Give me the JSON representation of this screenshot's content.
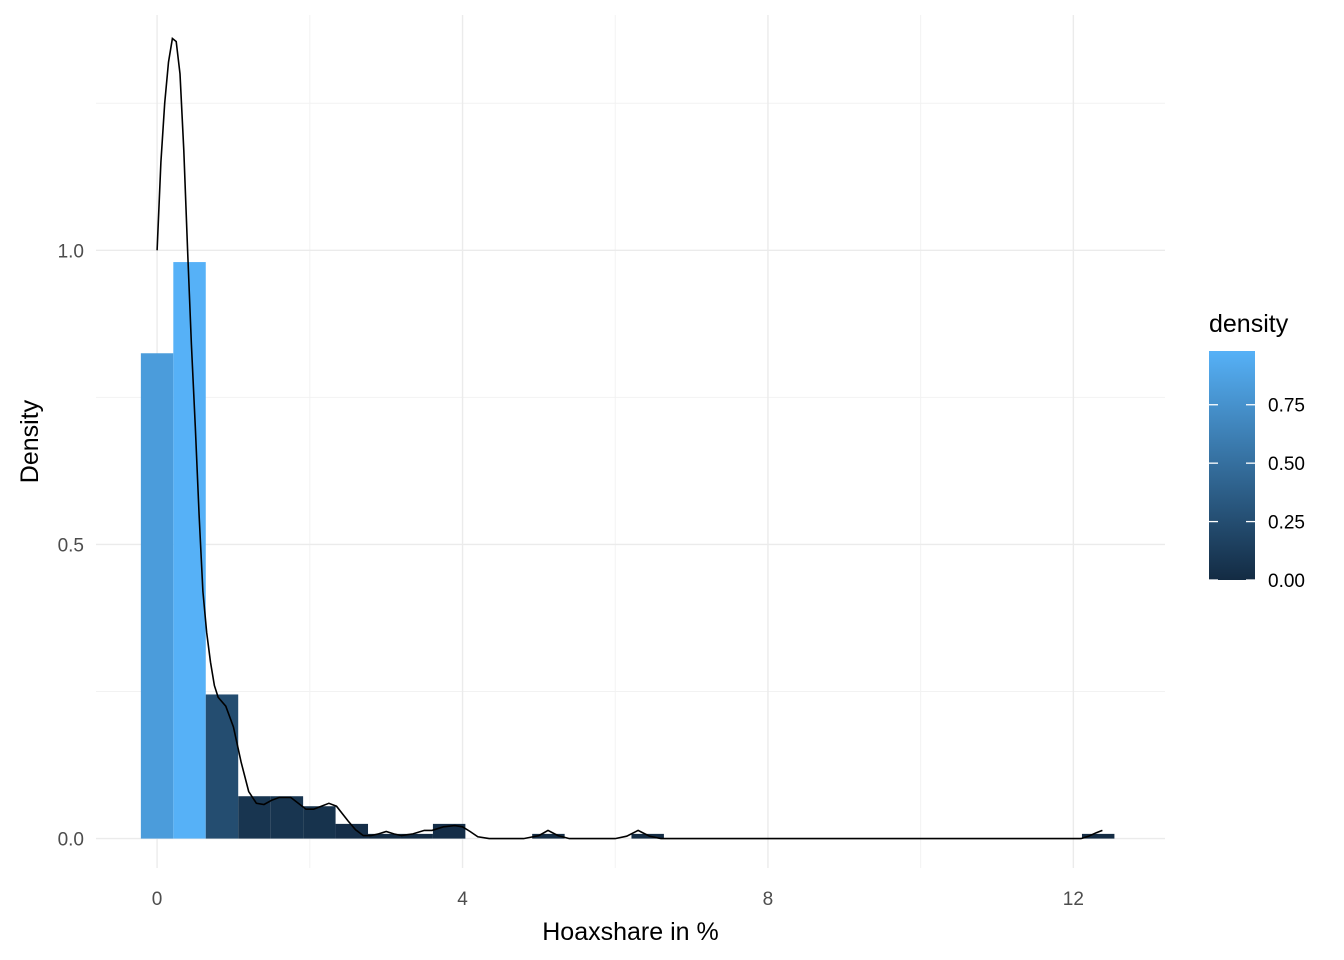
{
  "chart_data": {
    "type": "bar",
    "xlabel": "Hoaxshare in %",
    "ylabel": "Density",
    "xlim": [
      -0.8,
      13.2
    ],
    "ylim": [
      -0.05,
      1.4
    ],
    "x_ticks": [
      {
        "value": 0,
        "label": "0"
      },
      {
        "value": 4,
        "label": "4"
      },
      {
        "value": 8,
        "label": "8"
      },
      {
        "value": 12,
        "label": "12"
      }
    ],
    "y_ticks": [
      {
        "value": 0.0,
        "label": "0.0"
      },
      {
        "value": 0.5,
        "label": "0.5"
      },
      {
        "value": 1.0,
        "label": "1.0"
      }
    ],
    "x_minor": [
      2,
      6,
      10
    ],
    "y_minor": [
      0.25,
      0.75,
      1.25
    ],
    "grid": true,
    "bin_width": 0.425,
    "bins": [
      {
        "start": -0.2125,
        "end": 0.2125,
        "density": 0.825
      },
      {
        "start": 0.2125,
        "end": 0.6375,
        "density": 0.98
      },
      {
        "start": 0.6375,
        "end": 1.0625,
        "density": 0.245
      },
      {
        "start": 1.0625,
        "end": 1.4875,
        "density": 0.072
      },
      {
        "start": 1.4875,
        "end": 1.9125,
        "density": 0.072
      },
      {
        "start": 1.9125,
        "end": 2.3375,
        "density": 0.055
      },
      {
        "start": 2.3375,
        "end": 2.7625,
        "density": 0.025
      },
      {
        "start": 2.7625,
        "end": 3.1875,
        "density": 0.008
      },
      {
        "start": 3.1875,
        "end": 3.6125,
        "density": 0.008
      },
      {
        "start": 3.6125,
        "end": 4.0375,
        "density": 0.025
      },
      {
        "start": 4.9125,
        "end": 5.3375,
        "density": 0.008
      },
      {
        "start": 6.2125,
        "end": 6.6375,
        "density": 0.008
      },
      {
        "start": 12.1125,
        "end": 12.5375,
        "density": 0.008
      }
    ],
    "density_curve": [
      [
        0.0,
        1.0
      ],
      [
        0.05,
        1.15
      ],
      [
        0.1,
        1.25
      ],
      [
        0.15,
        1.32
      ],
      [
        0.2,
        1.36
      ],
      [
        0.25,
        1.355
      ],
      [
        0.3,
        1.3
      ],
      [
        0.35,
        1.17
      ],
      [
        0.4,
        1.0
      ],
      [
        0.45,
        0.84
      ],
      [
        0.5,
        0.7
      ],
      [
        0.55,
        0.55
      ],
      [
        0.6,
        0.42
      ],
      [
        0.65,
        0.35
      ],
      [
        0.7,
        0.3
      ],
      [
        0.75,
        0.26
      ],
      [
        0.8,
        0.24
      ],
      [
        0.9,
        0.225
      ],
      [
        1.0,
        0.19
      ],
      [
        1.1,
        0.13
      ],
      [
        1.2,
        0.08
      ],
      [
        1.3,
        0.06
      ],
      [
        1.4,
        0.058
      ],
      [
        1.5,
        0.065
      ],
      [
        1.6,
        0.07
      ],
      [
        1.75,
        0.07
      ],
      [
        1.85,
        0.06
      ],
      [
        1.95,
        0.05
      ],
      [
        2.05,
        0.05
      ],
      [
        2.15,
        0.055
      ],
      [
        2.25,
        0.06
      ],
      [
        2.35,
        0.055
      ],
      [
        2.5,
        0.03
      ],
      [
        2.6,
        0.015
      ],
      [
        2.7,
        0.005
      ],
      [
        2.8,
        0.005
      ],
      [
        2.9,
        0.008
      ],
      [
        3.0,
        0.012
      ],
      [
        3.1,
        0.008
      ],
      [
        3.2,
        0.005
      ],
      [
        3.35,
        0.008
      ],
      [
        3.5,
        0.014
      ],
      [
        3.6,
        0.014
      ],
      [
        3.75,
        0.02
      ],
      [
        3.9,
        0.022
      ],
      [
        4.0,
        0.02
      ],
      [
        4.1,
        0.012
      ],
      [
        4.2,
        0.003
      ],
      [
        4.35,
        0.0
      ],
      [
        4.8,
        0.0
      ],
      [
        5.0,
        0.005
      ],
      [
        5.12,
        0.014
      ],
      [
        5.25,
        0.005
      ],
      [
        5.4,
        0.0
      ],
      [
        6.0,
        0.0
      ],
      [
        6.15,
        0.004
      ],
      [
        6.3,
        0.014
      ],
      [
        6.45,
        0.004
      ],
      [
        6.6,
        0.0
      ],
      [
        12.1,
        0.0
      ],
      [
        12.2,
        0.004
      ],
      [
        12.3,
        0.01
      ],
      [
        12.38,
        0.014
      ]
    ],
    "fill_scale": {
      "low": "#132b43",
      "high": "#56b1f7",
      "min": 0,
      "max": 0.98
    },
    "legend": {
      "title": "density",
      "placement": "right",
      "breaks": [
        {
          "value": 0.0,
          "label": "0.00"
        },
        {
          "value": 0.25,
          "label": "0.25"
        },
        {
          "value": 0.5,
          "label": "0.50"
        },
        {
          "value": 0.75,
          "label": "0.75"
        }
      ]
    }
  }
}
